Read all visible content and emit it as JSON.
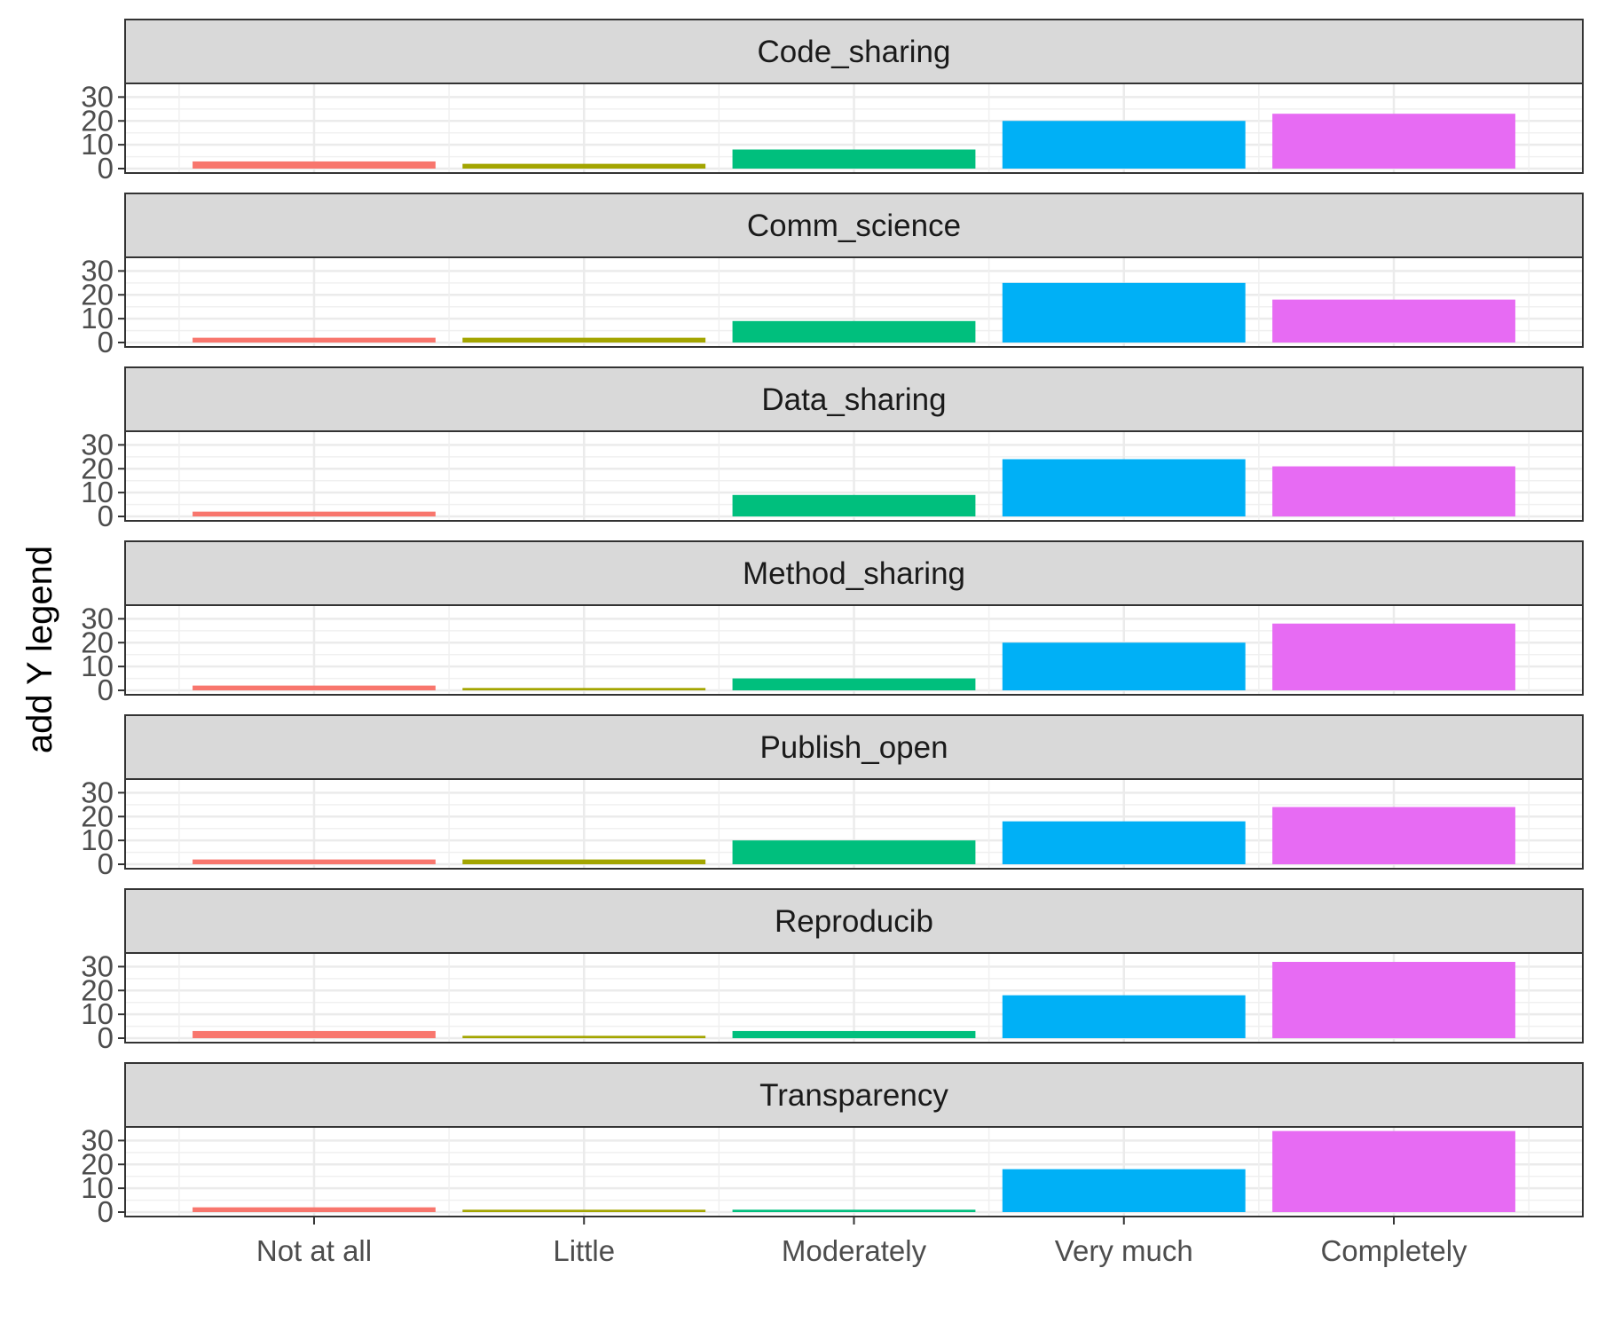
{
  "chart_data": {
    "type": "bar",
    "facet_layout": "vertical",
    "ylabel": "add Y legend",
    "xlabel": "",
    "categories": [
      "Not at all",
      "Little",
      "Moderately",
      "Very much",
      "Completely"
    ],
    "colors": [
      "#F8766D",
      "#A3A500",
      "#00BF7D",
      "#00B0F6",
      "#E76BF3"
    ],
    "yticks": [
      0,
      10,
      20,
      30
    ],
    "ylim": [
      0,
      32
    ],
    "grid": true,
    "legend": "none",
    "panels": [
      {
        "name": "Code_sharing",
        "values": [
          3,
          2,
          8,
          20,
          23
        ]
      },
      {
        "name": "Comm_science",
        "values": [
          2,
          2,
          9,
          25,
          18
        ]
      },
      {
        "name": "Data_sharing",
        "values": [
          2,
          0,
          9,
          24,
          21
        ]
      },
      {
        "name": "Method_sharing",
        "values": [
          2,
          1,
          5,
          20,
          28
        ]
      },
      {
        "name": "Publish_open",
        "values": [
          2,
          2,
          10,
          18,
          24
        ]
      },
      {
        "name": "Reproducib",
        "values": [
          3,
          1,
          3,
          18,
          32
        ]
      },
      {
        "name": "Transparency",
        "values": [
          2,
          1,
          1,
          18,
          34
        ]
      }
    ]
  }
}
